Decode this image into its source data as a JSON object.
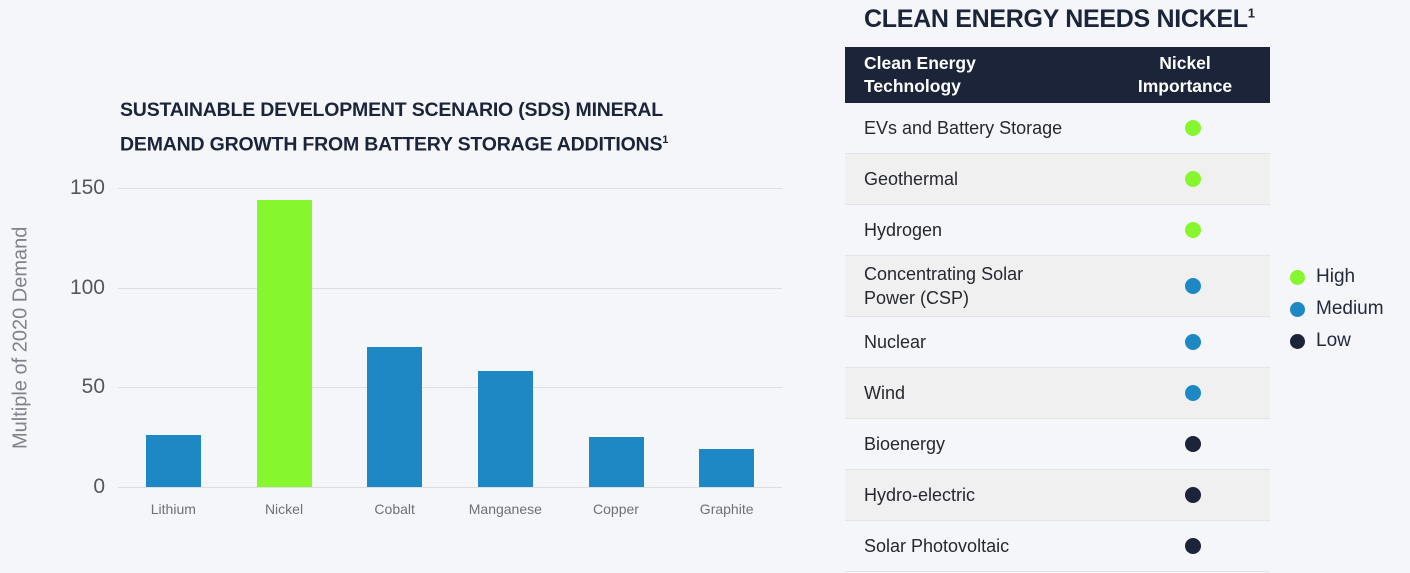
{
  "colors": {
    "background": "#f5f6fa",
    "navy": "#1b2438",
    "high": "#86f62e",
    "medium": "#1e88c4",
    "low": "#1b2438",
    "gridline": "#dcdee2",
    "row_alt": "#f0f0f1"
  },
  "chart": {
    "title_line1": "SUSTAINABLE DEVELOPMENT SCENARIO (SDS) MINERAL",
    "title_line2": "DEMAND GROWTH FROM BATTERY STORAGE ADDITIONS",
    "title_sup": "1",
    "ylabel": "Multiple of 2020 Demand"
  },
  "chart_data": {
    "type": "bar",
    "title": "Sustainable Development Scenario (SDS) mineral demand growth from battery storage additions",
    "categories": [
      "Lithium",
      "Nickel",
      "Cobalt",
      "Manganese",
      "Copper",
      "Graphite"
    ],
    "values": [
      26,
      144,
      70,
      58,
      25,
      19
    ],
    "levels": [
      "medium",
      "high",
      "medium",
      "medium",
      "medium",
      "medium"
    ],
    "highlight_category": "Nickel",
    "xlabel": "",
    "ylabel": "Multiple of 2020 Demand",
    "ylim": [
      0,
      150
    ],
    "yticks": [
      0,
      50,
      100,
      150
    ],
    "grid": "horizontal",
    "legend_position": "none"
  },
  "table": {
    "title": "CLEAN ENERGY NEEDS NICKEL",
    "title_sup": "1",
    "header": {
      "technology": "Clean Energy\nTechnology",
      "importance": "Nickel\nImportance"
    },
    "rows": [
      {
        "label": "EVs and Battery Storage",
        "importance": "High"
      },
      {
        "label": "Geothermal",
        "importance": "High"
      },
      {
        "label": "Hydrogen",
        "importance": "High"
      },
      {
        "label": "Concentrating Solar\nPower (CSP)",
        "importance": "Medium"
      },
      {
        "label": "Nuclear",
        "importance": "Medium"
      },
      {
        "label": "Wind",
        "importance": "Medium"
      },
      {
        "label": "Bioenergy",
        "importance": "Low"
      },
      {
        "label": "Hydro-electric",
        "importance": "Low"
      },
      {
        "label": "Solar Photovoltaic",
        "importance": "Low"
      }
    ]
  },
  "legend": {
    "items": [
      {
        "label": "High",
        "level": "high"
      },
      {
        "label": "Medium",
        "level": "medium"
      },
      {
        "label": "Low",
        "level": "low"
      }
    ]
  }
}
